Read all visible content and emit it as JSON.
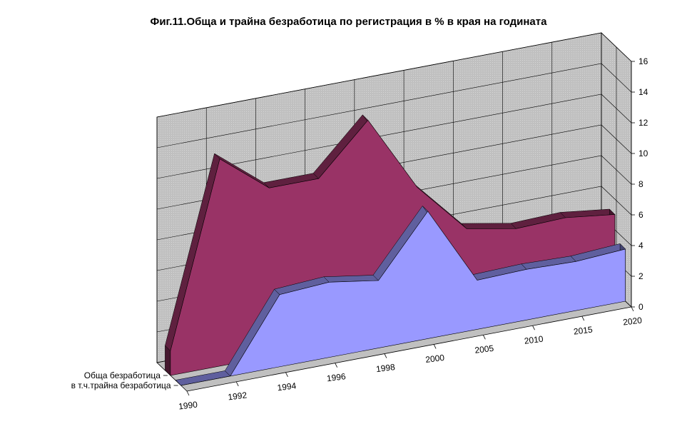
{
  "chart_data": {
    "type": "area",
    "title": "Фиг.11.Обща и трайна безработица по регистрация в % в края на годината",
    "categories": [
      "1990",
      "1992",
      "1994",
      "1996",
      "1998",
      "2000",
      "2005",
      "2010",
      "2015",
      "2020"
    ],
    "ylim": [
      0,
      16
    ],
    "yticks": [
      "0",
      "2",
      "4",
      "6",
      "8",
      "10",
      "12",
      "14",
      "16"
    ],
    "grid": true,
    "three_d": true,
    "series": [
      {
        "name": "Обща безработица",
        "values": [
          1.6,
          13.5,
          11.0,
          11.0,
          14.2,
          9.2,
          5.9,
          5.3,
          5.4,
          5.0
        ],
        "color": "#993366"
      },
      {
        "name": "в т.ч.трайна безработица",
        "values": [
          0.0,
          0.0,
          4.7,
          4.9,
          4.4,
          8.3,
          3.2,
          3.3,
          3.2,
          3.4
        ],
        "color": "#9999ff"
      }
    ]
  }
}
